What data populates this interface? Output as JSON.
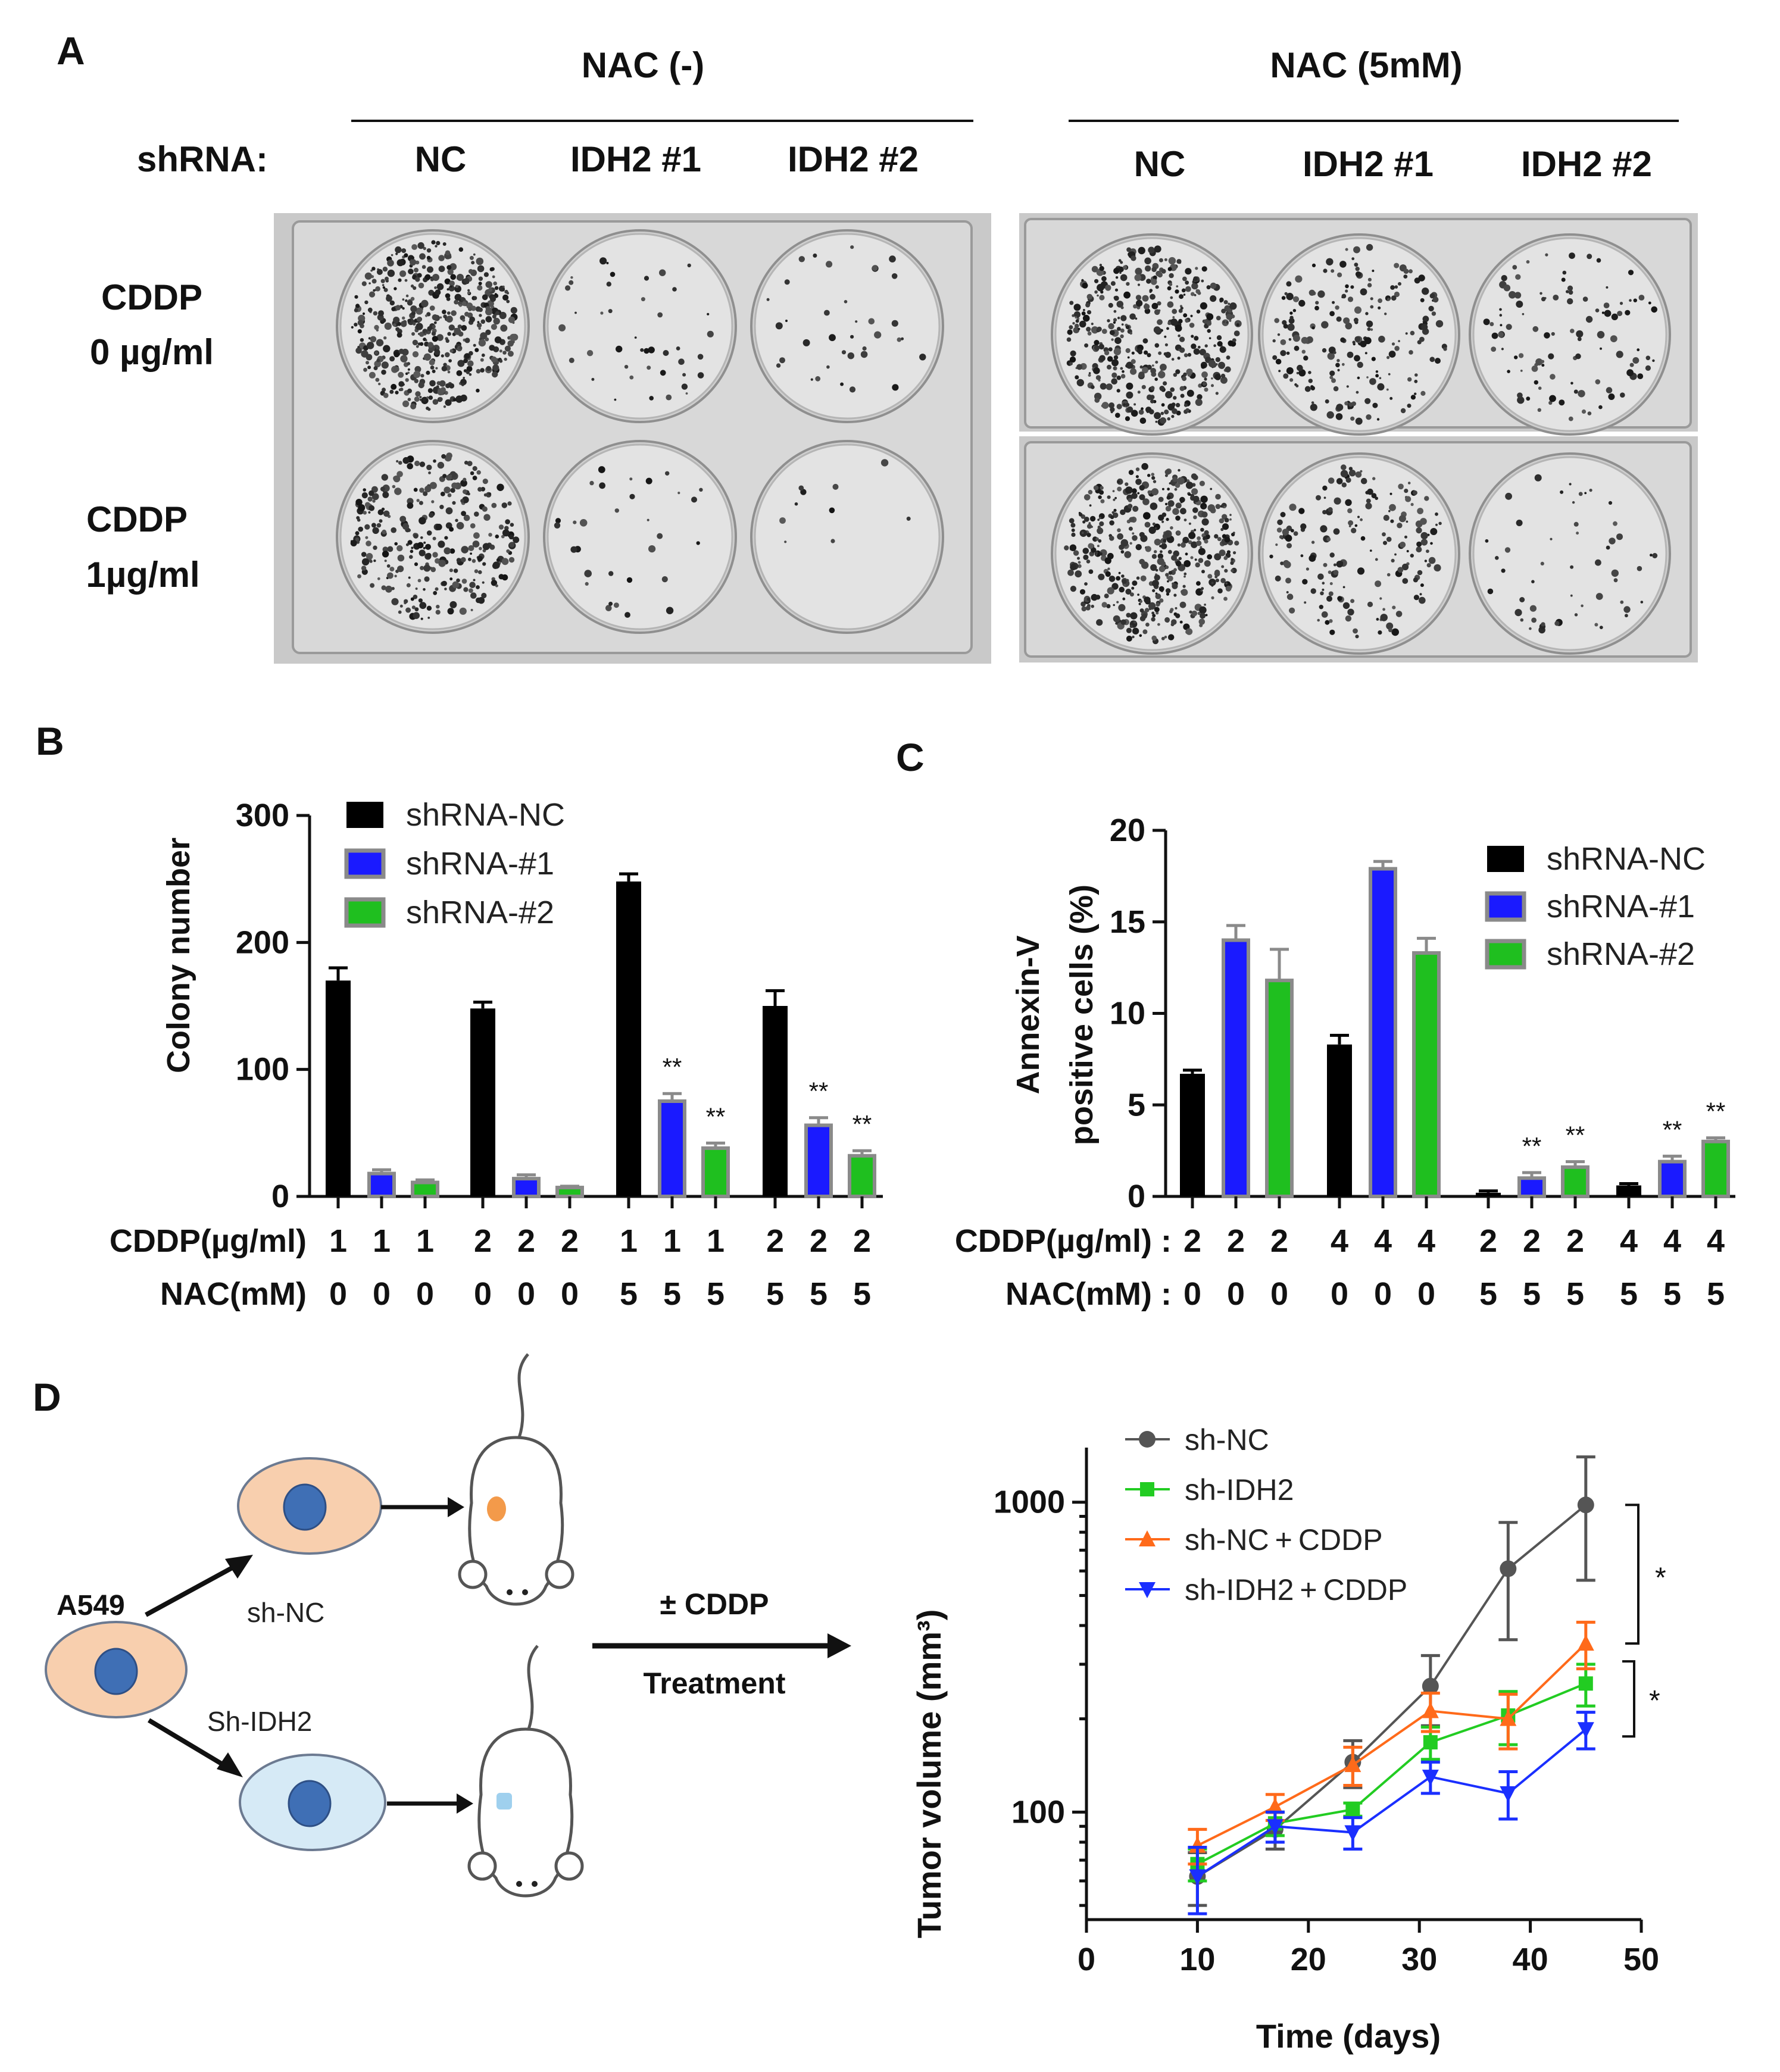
{
  "panels": {
    "A": "A",
    "B": "B",
    "C": "C",
    "D": "D"
  },
  "panelA": {
    "group_left": "NAC (-)",
    "group_right": "NAC (5mM)",
    "shrna_label": "shRNA:",
    "columns": [
      "NC",
      "IDH2 #1",
      "IDH2 #2"
    ],
    "row1": [
      "CDDP",
      "0 µg/ml"
    ],
    "row2": [
      "CDDP",
      "1µg/ml"
    ],
    "colony_density": {
      "left_top": [
        0.95,
        0.08,
        0.07
      ],
      "left_bottom": [
        0.6,
        0.06,
        0.02
      ],
      "right_top": [
        0.85,
        0.4,
        0.2
      ],
      "right_bottom": [
        0.9,
        0.35,
        0.1
      ]
    }
  },
  "chart_data": [
    {
      "type": "bar",
      "panel": "B",
      "ylabel": "Colony number",
      "ylim": [
        0,
        300
      ],
      "yticks": [
        0,
        100,
        200,
        300
      ],
      "legend": "top-left",
      "series": [
        {
          "name": "shRNA-NC",
          "color": "#000000",
          "values": [
            170,
            148,
            248,
            150
          ],
          "errors": [
            10,
            5,
            6,
            12
          ]
        },
        {
          "name": "shRNA-#1",
          "color": "#1a1aff",
          "values": [
            18,
            14,
            75,
            56
          ],
          "errors": [
            3,
            3,
            6,
            6
          ]
        },
        {
          "name": "shRNA-#2",
          "color": "#1fbf1f",
          "values": [
            11,
            7,
            38,
            32
          ],
          "errors": [
            2,
            1,
            4,
            4
          ]
        }
      ],
      "significance": [
        null,
        null,
        [
          "",
          "**",
          "**"
        ],
        [
          "",
          "**",
          "**"
        ]
      ],
      "row_labels": [
        "CDDP(µg/ml)",
        "NAC(mM)"
      ],
      "cddp_values": [
        "1",
        "1",
        "1",
        "2",
        "2",
        "2",
        "1",
        "1",
        "1",
        "2",
        "2",
        "2"
      ],
      "nac_values": [
        "0",
        "0",
        "0",
        "0",
        "0",
        "0",
        "5",
        "5",
        "5",
        "5",
        "5",
        "5"
      ]
    },
    {
      "type": "bar",
      "panel": "C",
      "ylabel": [
        "Annexin-V",
        "positive cells (%)"
      ],
      "ylim": [
        0,
        20
      ],
      "yticks": [
        0,
        5,
        10,
        15,
        20
      ],
      "legend": "top-right",
      "series": [
        {
          "name": "shRNA-NC",
          "color": "#000000",
          "values": [
            6.7,
            8.3,
            0.2,
            0.6
          ],
          "errors": [
            0.2,
            0.5,
            0.1,
            0.1
          ]
        },
        {
          "name": "shRNA-#1",
          "color": "#1a1aff",
          "values": [
            14.0,
            17.9,
            1.0,
            1.9
          ],
          "errors": [
            0.8,
            0.4,
            0.3,
            0.3
          ]
        },
        {
          "name": "shRNA-#2",
          "color": "#1fbf1f",
          "values": [
            11.8,
            13.3,
            1.6,
            3.0
          ],
          "errors": [
            1.7,
            0.8,
            0.3,
            0.2
          ]
        }
      ],
      "significance": [
        null,
        null,
        [
          "",
          "**",
          "**"
        ],
        [
          "",
          "**",
          "**"
        ]
      ],
      "row_labels": [
        "CDDP(µg/ml) :",
        "NAC(mM) :"
      ],
      "cddp_values": [
        "2",
        "2",
        "2",
        "4",
        "4",
        "4",
        "2",
        "2",
        "2",
        "4",
        "4",
        "4"
      ],
      "nac_values": [
        "0",
        "0",
        "0",
        "0",
        "0",
        "0",
        "5",
        "5",
        "5",
        "5",
        "5",
        "5"
      ]
    },
    {
      "type": "line",
      "panel": "D",
      "xlabel": "Time (days)",
      "ylabel": "Tumor volume (mm³)",
      "xlim": [
        0,
        50
      ],
      "xticks": [
        0,
        10,
        20,
        30,
        40,
        50
      ],
      "ylim": [
        45,
        1500
      ],
      "yscale": "log",
      "yticks": [
        100,
        1000
      ],
      "legend": "top-left",
      "x": [
        10,
        17,
        24,
        31,
        38,
        45
      ],
      "series": [
        {
          "name": "sh-NC",
          "color": "#555555",
          "marker": "circle",
          "values": [
            62,
            88,
            145,
            255,
            610,
            980
          ],
          "errors": [
            12,
            12,
            25,
            65,
            250,
            420
          ]
        },
        {
          "name": "sh-IDH2",
          "color": "#22cc22",
          "marker": "square",
          "values": [
            68,
            92,
            102,
            168,
            205,
            260
          ],
          "errors": [
            8,
            8,
            5,
            20,
            40,
            40
          ]
        },
        {
          "name": "sh-NC + CDDP",
          "color": "#ff6a1a",
          "marker": "triangle-up",
          "values": [
            78,
            104,
            142,
            212,
            200,
            350
          ],
          "errors": [
            10,
            10,
            20,
            30,
            40,
            60
          ]
        },
        {
          "name": "sh-IDH2 + CDDP",
          "color": "#1a2fff",
          "marker": "triangle-down",
          "values": [
            62,
            90,
            86,
            130,
            115,
            185
          ],
          "errors": [
            15,
            10,
            10,
            15,
            20,
            25
          ]
        }
      ],
      "significance": [
        "*",
        "*"
      ]
    }
  ],
  "schematic": {
    "cell_line": "A549",
    "branch_top": "sh-NC",
    "branch_bottom": "Sh-IDH2",
    "treatment_top": "± CDDP",
    "treatment_bottom": "Treatment",
    "colors": {
      "cell_nc": "#f8cfae",
      "cell_idh2": "#d6eaf6",
      "nucleus": "#3f6fb5",
      "tumor_nc": "#f39a4a",
      "tumor_idh2": "#9fd0ee"
    }
  }
}
